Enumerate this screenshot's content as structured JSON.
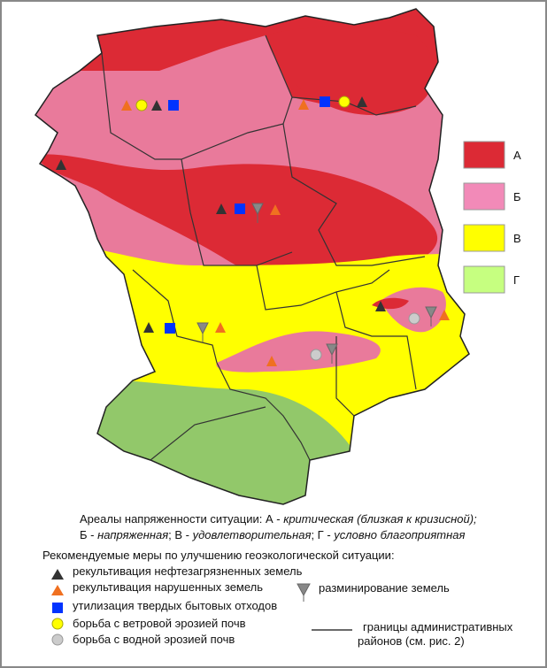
{
  "legend_zones": [
    {
      "label": "А",
      "color": "#dc2a35"
    },
    {
      "label": "Б",
      "color": "#f28ab8"
    },
    {
      "label": "В",
      "color": "#ffff00"
    },
    {
      "label": "Г",
      "color": "#c6ff80"
    }
  ],
  "caption": {
    "line1": [
      "Ареалы напряженности ситуации: А - ",
      "критическая (близкая к кризисной);"
    ],
    "line2": [
      "Б - ",
      "напряженная",
      "; В - ",
      "удовлетворительная",
      ";  Г - ",
      "условно благоприятная"
    ]
  },
  "measures_title": "Рекомендуемые меры по улучшению геоэкологической ситуации:",
  "measures": [
    "рекультивация нефтезагрязненных земель",
    "рекультивация нарушенных земель",
    "разминирование земель",
    "утилизация твердых бытовых отходов",
    "борьба с ветровой эрозией почв",
    "борьба с водной эрозией почв"
  ],
  "boundary_label": [
    "границы административных",
    "районов  (см. рис. 2)"
  ]
}
